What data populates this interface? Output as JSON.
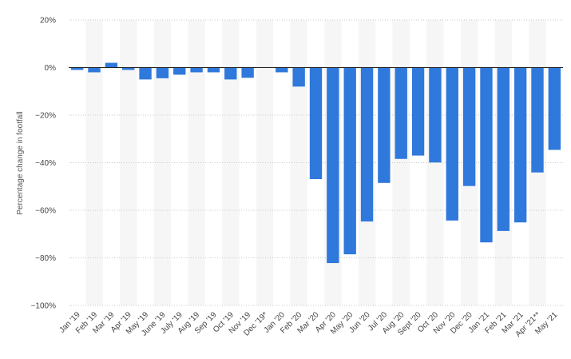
{
  "chart_data": {
    "type": "bar",
    "ylabel": "Percentage change in footfall",
    "ylim": [
      -100,
      20
    ],
    "yticks": [
      20,
      0,
      -20,
      -40,
      -60,
      -80,
      -100
    ],
    "ytick_labels": [
      "20%",
      "0%",
      "−20%",
      "−40%",
      "−60%",
      "−80%",
      "−100%"
    ],
    "grid": true,
    "alternating_column_bands": true,
    "bar_color": "#2f78dc",
    "categories": [
      "Jan '19",
      "Feb '19",
      "Mar '19",
      "Apr '19",
      "May '19",
      "June '19",
      "July '19",
      "Aug '19",
      "Sep '19",
      "Oct '19",
      "Nov '19",
      "Dec '19*",
      "Jan '20",
      "Feb '20",
      "Mar '20",
      "Apr '20",
      "May '20",
      "Jun '20",
      "Jul '20",
      "Aug '20",
      "Sept '20",
      "Oct '20",
      "Nov '20",
      "Dec '20",
      "Jan '21",
      "Feb '21",
      "Mar '21",
      "Apr '21**",
      "May '21"
    ],
    "values": [
      -1,
      -2,
      2,
      -1,
      -5,
      -4.5,
      -3,
      -2,
      -2,
      -5,
      -4.3,
      0.2,
      -2,
      -8,
      -46.9,
      -82.2,
      -78.5,
      -64.7,
      -48.5,
      -38.4,
      -37,
      -39.9,
      -64.3,
      -49.8,
      -73.5,
      -68.7,
      -65.1,
      -44.1,
      -34.6
    ]
  }
}
